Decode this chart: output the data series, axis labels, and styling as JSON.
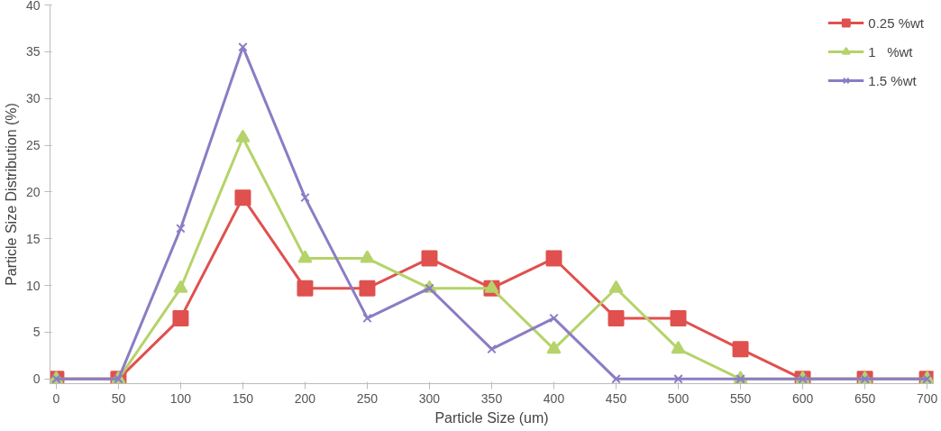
{
  "chart_data": {
    "type": "line",
    "xlabel": "Particle Size (um)",
    "ylabel": "Particle Size Distribution (%)",
    "categories": [
      "0",
      "50",
      "100",
      "150",
      "200",
      "250",
      "300",
      "350",
      "400",
      "450",
      "500",
      "550",
      "600",
      "650",
      "700"
    ],
    "series": [
      {
        "name": "0.25 %wt",
        "color": "#e0504e",
        "marker": "square",
        "values": [
          0,
          0,
          6.5,
          19.4,
          9.7,
          9.7,
          12.9,
          9.7,
          12.9,
          6.5,
          6.5,
          3.2,
          0,
          0,
          0
        ]
      },
      {
        "name": "1   %wt",
        "color": "#b5d36a",
        "marker": "triangle",
        "values": [
          0,
          0,
          9.7,
          25.8,
          12.9,
          12.9,
          9.7,
          9.7,
          3.2,
          9.7,
          3.2,
          0,
          0,
          0,
          0
        ]
      },
      {
        "name": "1.5 %wt",
        "color": "#8c7cc4",
        "marker": "cross",
        "values": [
          0,
          0,
          16.1,
          35.5,
          19.4,
          6.5,
          9.7,
          3.2,
          6.5,
          0,
          0,
          0,
          0,
          0,
          0
        ]
      }
    ],
    "ylim": [
      -0.5,
      40
    ],
    "yticks": [
      0,
      5,
      10,
      15,
      20,
      25,
      30,
      35,
      40
    ],
    "grid": false,
    "legend": "top right"
  }
}
